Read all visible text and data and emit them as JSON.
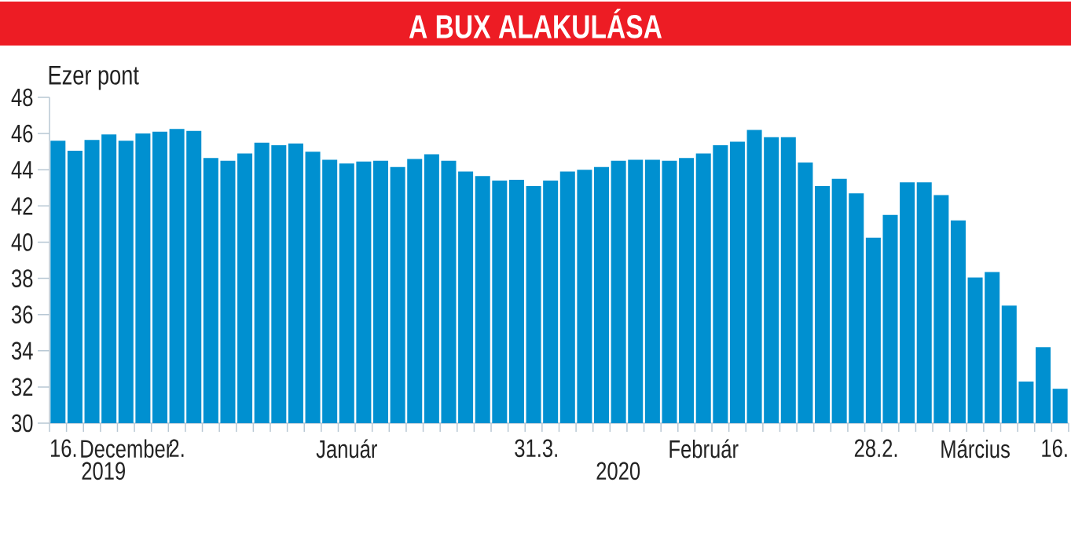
{
  "chart_data": {
    "type": "bar",
    "title": "A BUX ALAKULÁSA",
    "ylabel": "Ezer pont",
    "categories": [
      "16.",
      null,
      null,
      null,
      "December",
      null,
      null,
      "2.",
      null,
      null,
      null,
      null,
      null,
      null,
      null,
      null,
      null,
      "Január",
      null,
      null,
      null,
      null,
      null,
      null,
      null,
      null,
      null,
      null,
      "31.",
      "3.",
      null,
      null,
      null,
      null,
      null,
      null,
      null,
      null,
      "Február",
      null,
      null,
      null,
      null,
      null,
      null,
      null,
      null,
      null,
      "28.",
      "2.",
      null,
      null,
      null,
      null,
      "Március",
      null,
      null,
      null,
      null,
      "16."
    ],
    "values": [
      45.6,
      45.05,
      45.65,
      45.95,
      45.6,
      46.0,
      46.1,
      46.25,
      46.15,
      44.65,
      44.5,
      44.9,
      45.5,
      45.35,
      45.45,
      45.0,
      44.55,
      44.35,
      44.45,
      44.5,
      44.15,
      44.6,
      44.85,
      44.5,
      43.9,
      43.65,
      43.4,
      43.45,
      43.1,
      43.4,
      43.9,
      44.0,
      44.15,
      44.5,
      44.55,
      44.55,
      44.5,
      44.65,
      44.9,
      45.35,
      45.55,
      46.2,
      45.8,
      45.8,
      44.4,
      43.1,
      43.5,
      42.7,
      40.25,
      41.5,
      43.3,
      43.3,
      42.6,
      41.2,
      38.05,
      38.35,
      36.5,
      32.3,
      34.2,
      31.9
    ],
    "color": "#0090d0",
    "ylim": [
      30,
      48
    ],
    "yticks": [
      30,
      32,
      34,
      36,
      38,
      40,
      42,
      44,
      46,
      48
    ],
    "annotations": [
      "2019",
      "2020"
    ]
  }
}
